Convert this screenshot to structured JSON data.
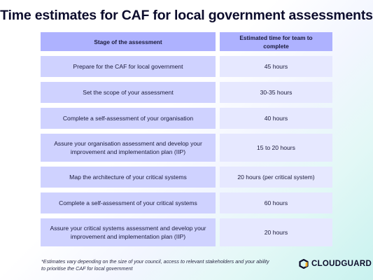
{
  "title": "Time estimates for CAF for local government assessments",
  "table": {
    "headers": {
      "stage": "Stage of the assessment",
      "time": "Estimated time for team to complete"
    },
    "rows": [
      {
        "stage": "Prepare for the CAF for local government",
        "time": "45 hours"
      },
      {
        "stage": "Set the scope of your assessment",
        "time": "30-35 hours"
      },
      {
        "stage": "Complete a self-assessment of your organisation",
        "time": "40 hours"
      },
      {
        "stage": "Assure your organisation assessment and develop your improvement and implementation plan (IIP)",
        "time": "15 to 20 hours"
      },
      {
        "stage": "Map the architecture of your critical systems",
        "time": "20 hours (per critical system)"
      },
      {
        "stage": "Complete a self-assessment of your critical systems",
        "time": "60 hours"
      },
      {
        "stage": "Assure your critical systems assessment and develop your improvement and implementation plan (IIP)",
        "time": "20 hours"
      }
    ]
  },
  "footnote": "*Estimates vary depending on the size of your council, access to relevant stakeholders and your ability to prioritise the CAF for local government",
  "logo": {
    "text": "CLOUDGUARD",
    "icon": "cloudguard-logo-icon",
    "colors": {
      "dark": "#0d0d2b",
      "accent": "#ffb020"
    }
  },
  "colors": {
    "header_bg": "#aeb2ff",
    "stage_bg": "#cfd2ff",
    "time_bg": "#e6e8ff"
  }
}
